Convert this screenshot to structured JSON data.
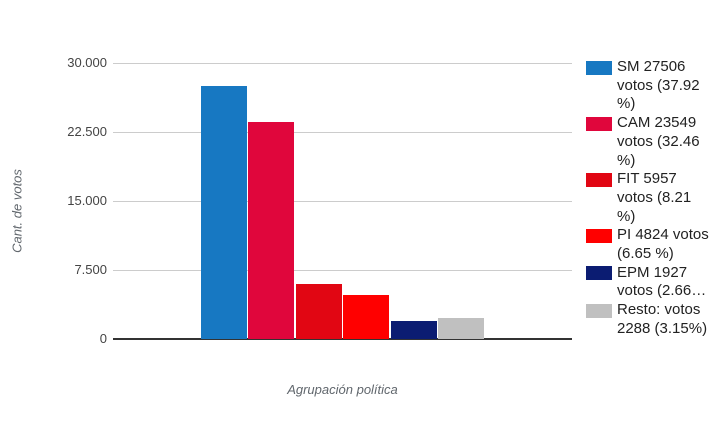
{
  "chart_data": {
    "type": "bar",
    "title": "",
    "xlabel": "Agrupación política",
    "ylabel": "Cant. de votos",
    "categories": [
      "SM",
      "CAM",
      "FIT",
      "PI",
      "EPM",
      "Resto"
    ],
    "values": [
      27506,
      23549,
      5957,
      4824,
      1927,
      2288
    ],
    "percentages": [
      37.92,
      32.46,
      8.21,
      6.65,
      2.66,
      3.15
    ],
    "colors": [
      "#1778c2",
      "#e0063c",
      "#e10613",
      "#ff0000",
      "#0b1c72",
      "#c0c0c0"
    ],
    "ylim": [
      0,
      30000
    ],
    "yticks": [
      0,
      7500,
      15000,
      22500,
      30000
    ],
    "ytick_labels": [
      "0",
      "7.500",
      "15.000",
      "22.500",
      "30.000"
    ],
    "grid": true,
    "legend_position": "right",
    "gridline_color": "#cccccc",
    "baseline_color": "#333333"
  },
  "legend": {
    "entries": [
      {
        "party": "SM",
        "color": "#1778c2",
        "lines": [
          "SM 27506",
          "votos (37.92",
          "%)"
        ]
      },
      {
        "party": "CAM",
        "color": "#e0063c",
        "lines": [
          "CAM 23549",
          "votos (32.46",
          "%)"
        ]
      },
      {
        "party": "FIT",
        "color": "#e10613",
        "lines": [
          "FIT 5957",
          "votos (8.21",
          "%)"
        ]
      },
      {
        "party": "PI",
        "color": "#ff0000",
        "lines": [
          "PI 4824 votos",
          "(6.65 %)"
        ]
      },
      {
        "party": "EPM",
        "color": "#0b1c72",
        "lines": [
          "EPM 1927",
          "votos (2.66…"
        ]
      },
      {
        "party": "Resto",
        "color": "#c0c0c0",
        "lines": [
          "Resto: votos",
          "2288 (3.15%)"
        ]
      }
    ]
  }
}
